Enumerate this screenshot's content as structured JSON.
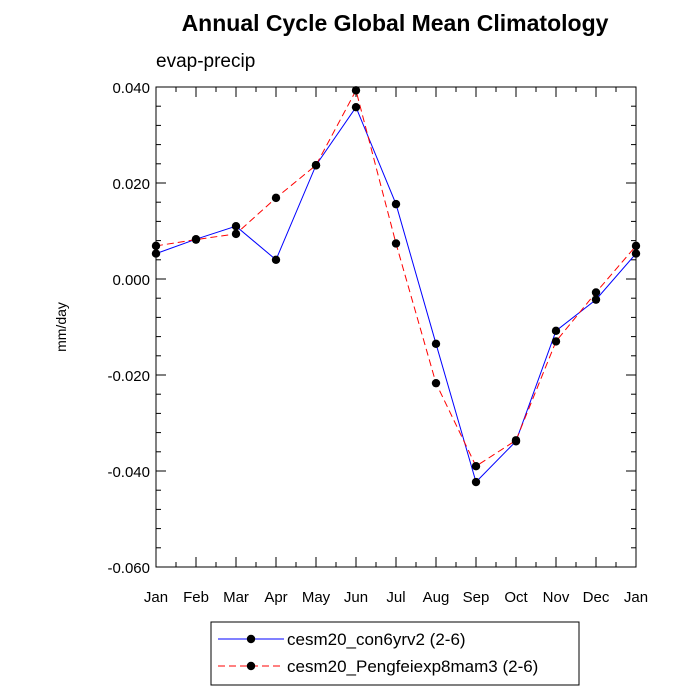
{
  "chart_data": {
    "type": "line",
    "title": "Annual Cycle Global Mean Climatology",
    "subtitle": "evap-precip",
    "xlabel": "",
    "ylabel": "mm/day",
    "categories": [
      "Jan",
      "Feb",
      "Mar",
      "Apr",
      "May",
      "Jun",
      "Jul",
      "Aug",
      "Sep",
      "Oct",
      "Nov",
      "Dec",
      "Jan"
    ],
    "ylim": [
      -0.06,
      0.04
    ],
    "yticks": [
      0.04,
      0.02,
      0.0,
      -0.02,
      -0.04,
      -0.06
    ],
    "ytick_labels": [
      "0.040",
      "0.020",
      "0.000",
      "-0.020",
      "-0.040",
      "-0.060"
    ],
    "series": [
      {
        "name": "cesm20_con6yrv2 (2-6)",
        "color": "#0000ff",
        "dashed": false,
        "values": [
          0.0053,
          0.0083,
          0.011,
          0.004,
          0.0237,
          0.0358,
          0.0156,
          -0.0135,
          -0.0423,
          -0.0338,
          -0.0108,
          -0.0043,
          0.0053
        ]
      },
      {
        "name": "cesm20_Pengfeiexp8mam3 (2-6)",
        "color": "#ff0000",
        "dashed": true,
        "values": [
          0.0069,
          0.0082,
          0.0094,
          0.0169,
          0.0237,
          0.0393,
          0.0074,
          -0.0217,
          -0.039,
          -0.0336,
          -0.013,
          -0.0028,
          0.0069
        ]
      }
    ],
    "legend_position": "bottom-center",
    "grid": false
  }
}
